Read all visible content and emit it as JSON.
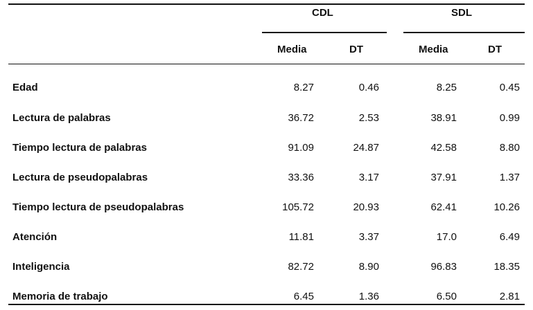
{
  "table": {
    "group_headers": [
      "CDL",
      "SDL"
    ],
    "sub_headers": [
      "Media",
      "DT",
      "Media",
      "DT"
    ],
    "rows": [
      {
        "label": "Edad",
        "values": [
          "8.27",
          "0.46",
          "8.25",
          "0.45"
        ]
      },
      {
        "label": "Lectura de palabras",
        "values": [
          "36.72",
          "2.53",
          "38.91",
          "0.99"
        ]
      },
      {
        "label": "Tiempo lectura de palabras",
        "values": [
          "91.09",
          "24.87",
          "42.58",
          "8.80"
        ]
      },
      {
        "label": "Lectura de pseudopalabras",
        "values": [
          "33.36",
          "3.17",
          "37.91",
          "1.37"
        ]
      },
      {
        "label": "Tiempo lectura de pseudopalabras",
        "values": [
          "105.72",
          "20.93",
          "62.41",
          "10.26"
        ]
      },
      {
        "label": "Atención",
        "values": [
          "11.81",
          "3.37",
          "17.0",
          "6.49"
        ]
      },
      {
        "label": "Inteligencia",
        "values": [
          "82.72",
          "8.90",
          "96.83",
          "18.35"
        ]
      },
      {
        "label": "Memoria de trabajo",
        "values": [
          "6.45",
          "1.36",
          "6.50",
          "2.81"
        ]
      }
    ]
  }
}
